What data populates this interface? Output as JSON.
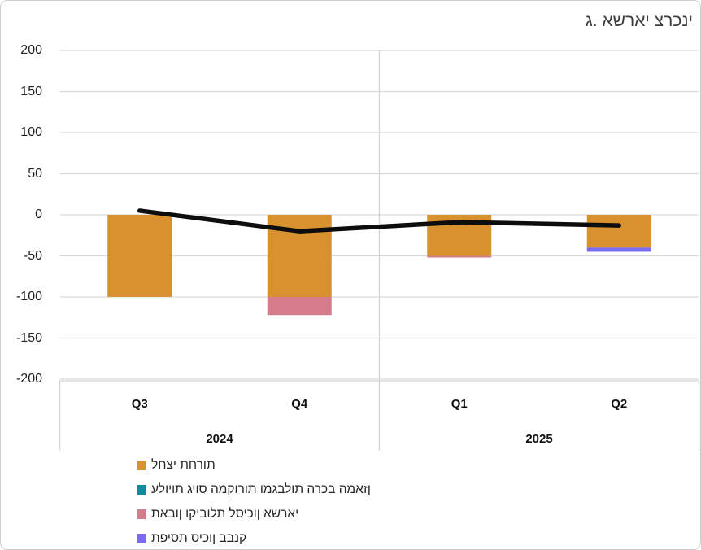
{
  "chart_data": {
    "type": "bar",
    "subtype": "stacked-bars-with-line",
    "title": "ג. אשראי צרכני",
    "categories": [
      "Q3",
      "Q4",
      "Q1",
      "Q2"
    ],
    "category_groups": [
      {
        "label": "2024",
        "span": 2
      },
      {
        "label": "2025",
        "span": 2
      }
    ],
    "ylim": [
      -200,
      200
    ],
    "ytick_step": 50,
    "ytick_labels": [
      "200",
      "150",
      "100",
      "50",
      "0",
      "-50",
      "-100",
      "-150",
      "-200"
    ],
    "grid": "horizontal",
    "legend_position": "bottom-left",
    "bar_series": [
      {
        "name": "לחצי תחרות",
        "color": "#D8922D",
        "values": [
          -100,
          -100,
          -50,
          -40
        ]
      },
      {
        "name": "עלויות גיוס המקורות ומגבלות הרכב המאזן",
        "color": "#0E8C9B",
        "values": [
          0,
          0,
          0,
          0
        ]
      },
      {
        "name": "תאבון וקיבולת לסיכון אשראי",
        "color": "#D67D8C",
        "values": [
          0,
          -22,
          -2,
          0
        ]
      },
      {
        "name": "תפיסת סיכון בבנק",
        "color": "#7A6BF5",
        "values": [
          0,
          0,
          0,
          -5
        ]
      }
    ],
    "line_series": {
      "color": "#0D0D0D",
      "values": [
        5,
        -20,
        -9,
        -13
      ]
    },
    "colors": {
      "gridline": "#D9D9D9",
      "axis": "#D4D4D4"
    }
  }
}
